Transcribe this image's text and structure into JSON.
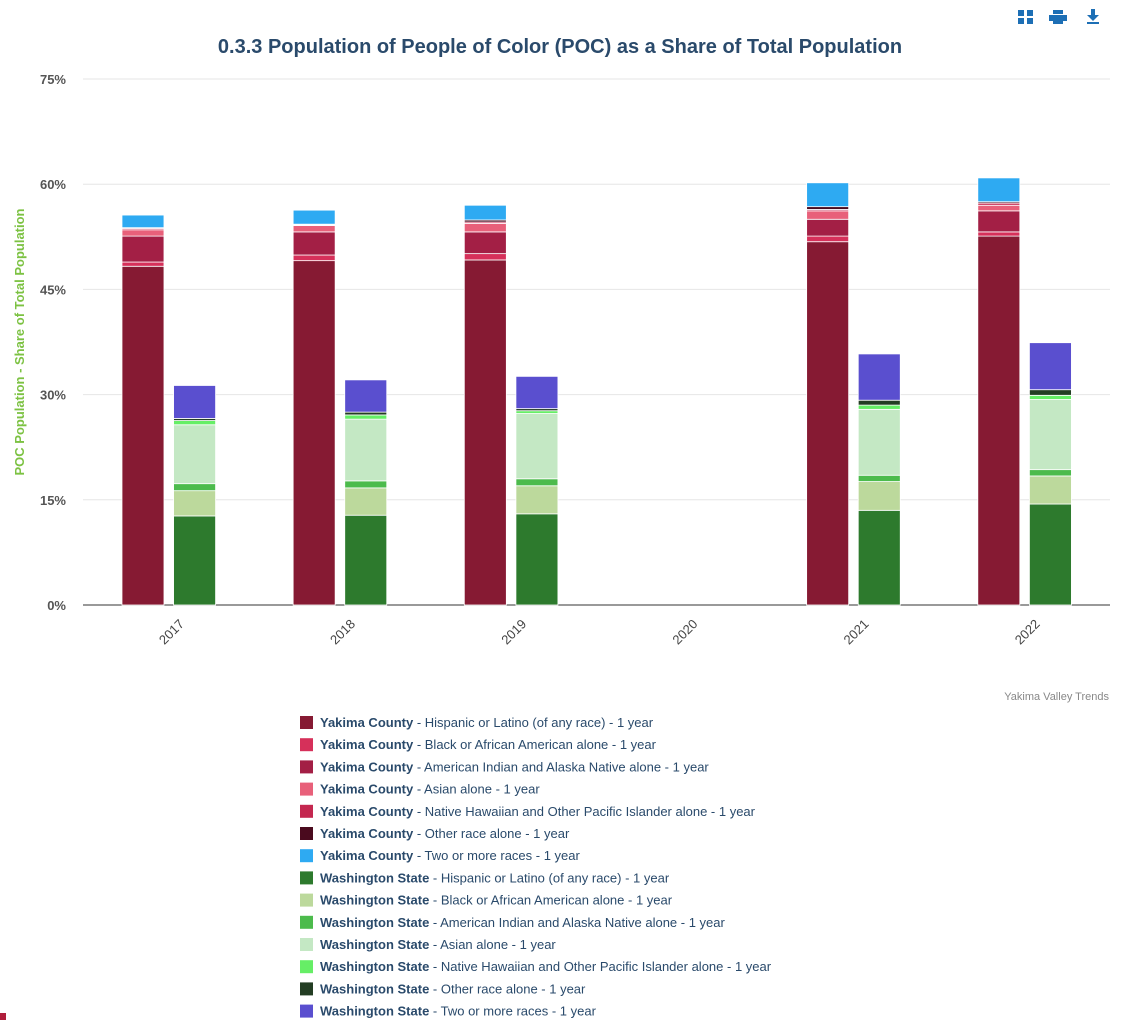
{
  "chart_data": {
    "type": "grouped_stacked_bar",
    "title": "0.3.3 Population of People of Color (POC) as a Share of Total Population",
    "ylabel": "POC Population - Share of Total Population",
    "credit": "Yakima Valley Trends",
    "categories": [
      "2017",
      "2018",
      "2019",
      "2020",
      "2021",
      "2022"
    ],
    "ylim": [
      0,
      75
    ],
    "yticks": [
      {
        "value": 0,
        "label": "0%"
      },
      {
        "value": 15,
        "label": "15%"
      },
      {
        "value": 30,
        "label": "30%"
      },
      {
        "value": 45,
        "label": "45%"
      },
      {
        "value": 60,
        "label": "60%"
      },
      {
        "value": 75,
        "label": "75%"
      }
    ],
    "grid": true,
    "series": [
      {
        "name": "Yakima County - Hispanic or Latino (of any race) - 1 year",
        "stack": 0,
        "color": "#861a33",
        "values": [
          48.3,
          49.1,
          49.2,
          null,
          51.8,
          52.6
        ]
      },
      {
        "name": "Yakima County - Black or African American alone - 1 year",
        "stack": 0,
        "color": "#d6305a",
        "values": [
          0.6,
          0.8,
          0.9,
          null,
          0.8,
          0.6
        ]
      },
      {
        "name": "Yakima County - American Indian and Alaska Native alone - 1 year",
        "stack": 0,
        "color": "#a31f45",
        "values": [
          3.7,
          3.3,
          3.1,
          null,
          2.4,
          3.0
        ]
      },
      {
        "name": "Yakima County - Asian alone - 1 year",
        "stack": 0,
        "color": "#e8607a",
        "values": [
          0.9,
          0.9,
          1.2,
          null,
          1.2,
          0.8
        ]
      },
      {
        "name": "Yakima County - Native Hawaiian and Other Pacific Islander alone - 1 year",
        "stack": 0,
        "color": "#c4274f",
        "values": [
          0.2,
          0.1,
          0.2,
          null,
          0.2,
          0.3
        ]
      },
      {
        "name": "Yakima County - Other race alone - 1 year",
        "stack": 0,
        "color": "#4a0a1e",
        "values": [
          0.1,
          0.1,
          0.3,
          null,
          0.4,
          0.2
        ]
      },
      {
        "name": "Yakima County - Two or more races - 1 year",
        "stack": 0,
        "color": "#2eaaf2",
        "values": [
          1.8,
          2.0,
          2.1,
          null,
          3.4,
          3.4
        ]
      },
      {
        "name": "Washington State - Hispanic or Latino (of any race) - 1 year",
        "stack": 1,
        "color": "#2d7a2d",
        "values": [
          12.7,
          12.8,
          13.0,
          null,
          13.5,
          14.4
        ]
      },
      {
        "name": "Washington State - Black or African American alone - 1 year",
        "stack": 1,
        "color": "#bcd99c",
        "values": [
          3.6,
          3.9,
          4.0,
          null,
          4.1,
          4.0
        ]
      },
      {
        "name": "Washington State - American Indian and Alaska Native alone - 1 year",
        "stack": 1,
        "color": "#4cbb4c",
        "values": [
          1.0,
          1.0,
          1.0,
          null,
          0.9,
          0.9
        ]
      },
      {
        "name": "Washington State - Asian alone - 1 year",
        "stack": 1,
        "color": "#c4e8c4",
        "values": [
          8.4,
          8.8,
          9.3,
          null,
          9.4,
          10.0
        ]
      },
      {
        "name": "Washington State - Native Hawaiian and Other Pacific Islander alone - 1 year",
        "stack": 1,
        "color": "#66ee66",
        "values": [
          0.6,
          0.6,
          0.4,
          null,
          0.6,
          0.6
        ]
      },
      {
        "name": "Washington State - Other race alone - 1 year",
        "stack": 1,
        "color": "#233d23",
        "values": [
          0.3,
          0.4,
          0.3,
          null,
          0.7,
          0.8
        ]
      },
      {
        "name": "Washington State - Two or more races - 1 year",
        "stack": 1,
        "color": "#5a4fcf",
        "values": [
          4.7,
          4.6,
          4.6,
          null,
          6.6,
          6.7
        ]
      }
    ]
  }
}
